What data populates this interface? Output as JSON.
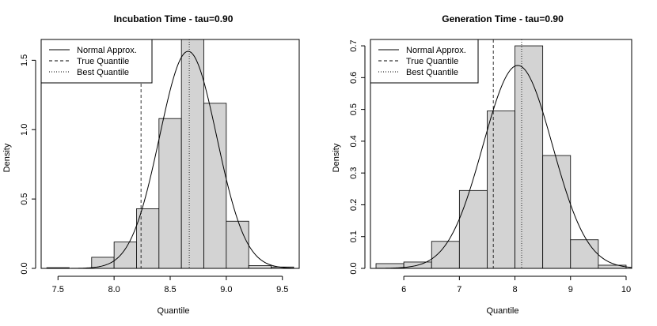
{
  "chart_data": [
    {
      "type": "histogram",
      "title": "Incubation Time - tau=0.90",
      "xlabel": "Quantile",
      "ylabel": "Density",
      "xlim": [
        7.35,
        9.65
      ],
      "ylim": [
        0,
        1.65
      ],
      "xticks": [
        7.5,
        8.0,
        8.5,
        9.0,
        9.5
      ],
      "xtick_labels": [
        "7.5",
        "8.0",
        "8.5",
        "9.0",
        "9.5"
      ],
      "yticks": [
        0.0,
        0.5,
        1.0,
        1.5
      ],
      "ytick_labels": [
        "0.0",
        "0.5",
        "1.0",
        "1.5"
      ],
      "bins": [
        {
          "x0": 7.4,
          "x1": 7.6,
          "density": 0.005
        },
        {
          "x0": 7.6,
          "x1": 7.8,
          "density": 0.0
        },
        {
          "x0": 7.8,
          "x1": 8.0,
          "density": 0.08
        },
        {
          "x0": 8.0,
          "x1": 8.2,
          "density": 0.19
        },
        {
          "x0": 8.2,
          "x1": 8.4,
          "density": 0.43
        },
        {
          "x0": 8.4,
          "x1": 8.6,
          "density": 1.08
        },
        {
          "x0": 8.6,
          "x1": 8.8,
          "density": 1.65
        },
        {
          "x0": 8.8,
          "x1": 9.0,
          "density": 1.19
        },
        {
          "x0": 9.0,
          "x1": 9.2,
          "density": 0.34
        },
        {
          "x0": 9.2,
          "x1": 9.4,
          "density": 0.02
        },
        {
          "x0": 9.4,
          "x1": 9.6,
          "density": 0.01
        }
      ],
      "normal_approx": {
        "mean": 8.66,
        "sd": 0.255,
        "xrange": [
          7.4,
          9.6
        ]
      },
      "true_quantile": 8.24,
      "best_quantile": 8.67,
      "legend": {
        "position": "top-left",
        "entries": [
          {
            "label": "Normal Approx.",
            "style": "solid"
          },
          {
            "label": "True Quantile",
            "style": "dashed"
          },
          {
            "label": "Best Quantile",
            "style": "dotted"
          }
        ]
      }
    },
    {
      "type": "histogram",
      "title": "Generation Time - tau=0.90",
      "xlabel": "Quantile",
      "ylabel": "Density",
      "xlim": [
        5.4,
        10.1
      ],
      "ylim": [
        0,
        0.72
      ],
      "xticks": [
        6,
        7,
        8,
        9,
        10
      ],
      "xtick_labels": [
        "6",
        "7",
        "8",
        "9",
        "10"
      ],
      "yticks": [
        0.0,
        0.1,
        0.2,
        0.3,
        0.4,
        0.5,
        0.6,
        0.7
      ],
      "ytick_labels": [
        "0.0",
        "0.1",
        "0.2",
        "0.3",
        "0.4",
        "0.5",
        "0.6",
        "0.7"
      ],
      "bins": [
        {
          "x0": 5.5,
          "x1": 6.0,
          "density": 0.015
        },
        {
          "x0": 6.0,
          "x1": 6.5,
          "density": 0.02
        },
        {
          "x0": 6.5,
          "x1": 7.0,
          "density": 0.085
        },
        {
          "x0": 7.0,
          "x1": 7.5,
          "density": 0.245
        },
        {
          "x0": 7.5,
          "x1": 8.0,
          "density": 0.495
        },
        {
          "x0": 8.0,
          "x1": 8.5,
          "density": 0.7
        },
        {
          "x0": 8.5,
          "x1": 9.0,
          "density": 0.355
        },
        {
          "x0": 9.0,
          "x1": 9.5,
          "density": 0.09
        },
        {
          "x0": 9.5,
          "x1": 10.0,
          "density": 0.01
        }
      ],
      "normal_approx": {
        "mean": 8.05,
        "sd": 0.625,
        "xrange": [
          5.5,
          10.1
        ]
      },
      "true_quantile": 7.61,
      "best_quantile": 8.12,
      "legend": {
        "position": "top-left",
        "entries": [
          {
            "label": "Normal Approx.",
            "style": "solid"
          },
          {
            "label": "True Quantile",
            "style": "dashed"
          },
          {
            "label": "Best Quantile",
            "style": "dotted"
          }
        ]
      }
    }
  ]
}
